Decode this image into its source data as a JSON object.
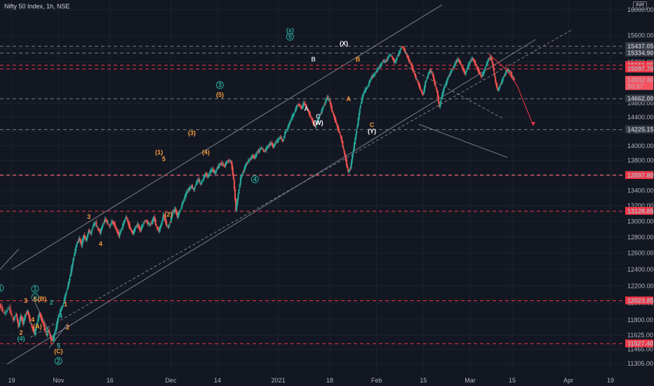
{
  "header": {
    "title": "Nifty 50 Index, 1h, NSE",
    "currency": "INR"
  },
  "chart_data": {
    "type": "candlestick",
    "instrument": "Nifty 50 Index",
    "timeframe": "1h",
    "exchange": "NSE",
    "currency": "INR",
    "ylim": [
      11235,
      16100
    ],
    "y_ticks": [
      16000,
      15600,
      15400,
      15200,
      14600,
      14400,
      14200,
      14000,
      13800,
      13600,
      13400,
      13200,
      13000,
      12800,
      12600,
      12400,
      12200,
      12000,
      11800,
      11625,
      11465,
      11305
    ],
    "y_tick_labels": [
      "16000.00",
      "15600.00",
      "15400.00",
      "15200.00",
      "14600.00",
      "14400.00",
      "14200.00",
      "14000.00",
      "13800.00",
      "13600.00",
      "13400.00",
      "13200.00",
      "13000.00",
      "12800.00",
      "12600.00",
      "12400.00",
      "12200.00",
      "12000.00",
      "11800.00",
      "11625.00",
      "11465.00",
      "11305.00"
    ],
    "x_ticks": [
      {
        "label": "19",
        "x": 0
      },
      {
        "label": "Nov",
        "x": 10
      },
      {
        "label": "16",
        "x": 21
      },
      {
        "label": "Dec",
        "x": 34
      },
      {
        "label": "14",
        "x": 44
      },
      {
        "label": "2021",
        "x": 57
      },
      {
        "label": "18",
        "x": 68
      },
      {
        "label": "Feb",
        "x": 78
      },
      {
        "label": "15",
        "x": 88
      },
      {
        "label": "Mar",
        "x": 98
      },
      {
        "label": "15",
        "x": 107
      },
      {
        "label": "Apr",
        "x": 119
      },
      {
        "label": "19",
        "x": 128
      }
    ],
    "xlim": [
      -2.5,
      131
    ],
    "price_path": [
      [
        -2.5,
        11980
      ],
      [
        -1.5,
        11870
      ],
      [
        -0.5,
        11940
      ],
      [
        0.5,
        11790
      ],
      [
        1,
        11880
      ],
      [
        1.5,
        11720
      ],
      [
        2,
        11840
      ],
      [
        2.5,
        11760
      ],
      [
        3,
        11860
      ],
      [
        3.5,
        11900
      ],
      [
        4,
        11780
      ],
      [
        4.5,
        11700
      ],
      [
        5,
        11640
      ],
      [
        5.5,
        11770
      ],
      [
        6,
        11880
      ],
      [
        6.5,
        11800
      ],
      [
        7,
        11720
      ],
      [
        7.5,
        11620
      ],
      [
        8,
        11680
      ],
      [
        8.5,
        11560
      ],
      [
        9,
        11600
      ],
      [
        9.5,
        11700
      ],
      [
        10,
        11820
      ],
      [
        10.5,
        11910
      ],
      [
        11,
        11970
      ],
      [
        11.5,
        12080
      ],
      [
        12,
        12180
      ],
      [
        12.5,
        12300
      ],
      [
        13,
        12450
      ],
      [
        13.5,
        12600
      ],
      [
        14,
        12720
      ],
      [
        14.5,
        12780
      ],
      [
        15,
        12700
      ],
      [
        15.5,
        12820
      ],
      [
        16,
        12760
      ],
      [
        16.5,
        12880
      ],
      [
        17,
        12840
      ],
      [
        17.5,
        12950
      ],
      [
        18,
        12980
      ],
      [
        18.5,
        12900
      ],
      [
        19,
        12860
      ],
      [
        19.5,
        12950
      ],
      [
        20,
        13020
      ],
      [
        20.5,
        12990
      ],
      [
        21,
        12930
      ],
      [
        21.5,
        13000
      ],
      [
        22,
        12960
      ],
      [
        22.5,
        12880
      ],
      [
        23,
        12820
      ],
      [
        23.5,
        12900
      ],
      [
        24,
        12980
      ],
      [
        24.5,
        13060
      ],
      [
        25,
        12970
      ],
      [
        25.5,
        12890
      ],
      [
        26,
        12850
      ],
      [
        26.5,
        12920
      ],
      [
        27,
        12960
      ],
      [
        27.5,
        12880
      ],
      [
        28,
        12940
      ],
      [
        28.5,
        13010
      ],
      [
        29,
        12990
      ],
      [
        29.5,
        12950
      ],
      [
        30,
        12980
      ],
      [
        30.5,
        13050
      ],
      [
        31,
        12930
      ],
      [
        31.5,
        12880
      ],
      [
        32,
        12950
      ],
      [
        32.5,
        13080
      ],
      [
        33,
        12980
      ],
      [
        33.5,
        12920
      ],
      [
        34,
        13000
      ],
      [
        34.5,
        13120
      ],
      [
        35,
        13150
      ],
      [
        35.5,
        13060
      ],
      [
        36,
        13130
      ],
      [
        36.5,
        13220
      ],
      [
        37,
        13300
      ],
      [
        37.5,
        13380
      ],
      [
        38,
        13420
      ],
      [
        38.5,
        13460
      ],
      [
        39,
        13400
      ],
      [
        39.5,
        13500
      ],
      [
        40,
        13540
      ],
      [
        40.5,
        13480
      ],
      [
        41,
        13560
      ],
      [
        41.5,
        13620
      ],
      [
        42,
        13580
      ],
      [
        42.5,
        13650
      ],
      [
        43,
        13680
      ],
      [
        43.5,
        13630
      ],
      [
        44,
        13700
      ],
      [
        44.5,
        13740
      ],
      [
        45,
        13760
      ],
      [
        45.5,
        13720
      ],
      [
        46,
        13780
      ],
      [
        46.5,
        13800
      ],
      [
        47,
        13770
      ],
      [
        47.5,
        13540
      ],
      [
        48,
        13150
      ],
      [
        48.5,
        13350
      ],
      [
        49,
        13560
      ],
      [
        49.5,
        13640
      ],
      [
        50,
        13720
      ],
      [
        50.5,
        13780
      ],
      [
        51,
        13820
      ],
      [
        51.5,
        13860
      ],
      [
        52,
        13840
      ],
      [
        52.5,
        13900
      ],
      [
        53,
        13940
      ],
      [
        53.5,
        13980
      ],
      [
        54,
        13920
      ],
      [
        54.5,
        13960
      ],
      [
        55,
        14000
      ],
      [
        55.5,
        14040
      ],
      [
        56,
        13990
      ],
      [
        56.5,
        14050
      ],
      [
        57,
        14080
      ],
      [
        57.5,
        14120
      ],
      [
        58,
        14060
      ],
      [
        58.5,
        14180
      ],
      [
        59,
        14240
      ],
      [
        59.5,
        14320
      ],
      [
        60,
        14400
      ],
      [
        60.5,
        14460
      ],
      [
        61,
        14560
      ],
      [
        61.5,
        14580
      ],
      [
        62,
        14520
      ],
      [
        62.5,
        14600
      ],
      [
        63,
        14550
      ],
      [
        63.5,
        14480
      ],
      [
        64,
        14400
      ],
      [
        64.5,
        14320
      ],
      [
        65,
        14260
      ],
      [
        65.5,
        14360
      ],
      [
        66,
        14440
      ],
      [
        66.5,
        14520
      ],
      [
        67,
        14600
      ],
      [
        67.5,
        14680
      ],
      [
        68,
        14640
      ],
      [
        68.5,
        14500
      ],
      [
        69,
        14400
      ],
      [
        69.5,
        14300
      ],
      [
        70,
        14200
      ],
      [
        70.5,
        14100
      ],
      [
        71,
        13950
      ],
      [
        71.5,
        13800
      ],
      [
        72,
        13640
      ],
      [
        72.5,
        13700
      ],
      [
        73,
        13900
      ],
      [
        73.5,
        14100
      ],
      [
        74,
        14300
      ],
      [
        74.5,
        14520
      ],
      [
        75,
        14680
      ],
      [
        75.5,
        14780
      ],
      [
        76,
        14820
      ],
      [
        76.5,
        14900
      ],
      [
        77,
        14980
      ],
      [
        77.5,
        15000
      ],
      [
        78,
        15060
      ],
      [
        78.5,
        15120
      ],
      [
        79,
        15160
      ],
      [
        79.5,
        15220
      ],
      [
        80,
        15200
      ],
      [
        80.5,
        15270
      ],
      [
        81,
        15320
      ],
      [
        81.5,
        15250
      ],
      [
        82,
        15190
      ],
      [
        82.5,
        15280
      ],
      [
        83,
        15360
      ],
      [
        83.5,
        15440
      ],
      [
        84,
        15380
      ],
      [
        84.5,
        15300
      ],
      [
        85,
        15220
      ],
      [
        85.5,
        15150
      ],
      [
        86,
        15050
      ],
      [
        86.5,
        14960
      ],
      [
        87,
        14880
      ],
      [
        87.5,
        14780
      ],
      [
        88,
        14720
      ],
      [
        88.5,
        14900
      ],
      [
        89,
        15000
      ],
      [
        89.5,
        15080
      ],
      [
        90,
        15020
      ],
      [
        90.5,
        14880
      ],
      [
        91,
        14760
      ],
      [
        91.5,
        14540
      ],
      [
        92,
        14700
      ],
      [
        92.5,
        14820
      ],
      [
        93,
        14900
      ],
      [
        93.5,
        15000
      ],
      [
        94,
        15060
      ],
      [
        94.5,
        15120
      ],
      [
        95,
        15200
      ],
      [
        95.5,
        15240
      ],
      [
        96,
        15180
      ],
      [
        96.5,
        15100
      ],
      [
        97,
        15020
      ],
      [
        97.5,
        15120
      ],
      [
        98,
        15200
      ],
      [
        98.5,
        15260
      ],
      [
        99,
        15200
      ],
      [
        99.5,
        15120
      ],
      [
        100,
        15040
      ],
      [
        100.5,
        14980
      ],
      [
        101,
        15060
      ],
      [
        101.5,
        15160
      ],
      [
        102,
        15240
      ],
      [
        102.5,
        15270
      ],
      [
        103,
        15120
      ],
      [
        103.5,
        14900
      ],
      [
        104,
        14780
      ],
      [
        104.5,
        14860
      ],
      [
        105,
        14940
      ],
      [
        105.5,
        15020
      ],
      [
        106,
        15090
      ],
      [
        106.5,
        15060
      ],
      [
        107,
        14990
      ],
      [
        107.5,
        14932
      ]
    ],
    "horizontal_levels": [
      {
        "value": 15437.05,
        "label": "15437.05",
        "style": "dashed-gray"
      },
      {
        "value": 15334.9,
        "label": "15334.90",
        "style": "dashed-gray"
      },
      {
        "value": 15151.85,
        "label": "15151.85",
        "style": "dashed-red"
      },
      {
        "value": 15097.7,
        "label": "15097.70",
        "style": "dashed-red"
      },
      {
        "value": 14662.0,
        "label": "14662.00",
        "style": "dashed-gray"
      },
      {
        "value": 14225.15,
        "label": "14225.15",
        "style": "dashed-gray"
      },
      {
        "value": 13605.8,
        "label": "13605.80",
        "style": "dashed-gray"
      },
      {
        "value": 13597.8,
        "label": "13597.80",
        "style": "dashed-red"
      },
      {
        "value": 13128.85,
        "label": "13128.85",
        "style": "dashed-red"
      },
      {
        "value": 12023.85,
        "label": "12023.85",
        "style": "dashed-red"
      },
      {
        "value": 11527.4,
        "label": "11527.40",
        "style": "dashed-red"
      }
    ],
    "current_price": {
      "value": 14932.4,
      "label": "14932.40",
      "countdown": "50:37"
    },
    "trend_lines": [
      {
        "x1": -2.5,
        "y1": 12400,
        "x2": 1.5,
        "y2": 12650,
        "style": "solid"
      },
      {
        "x1": 0,
        "y1": 12400,
        "x2": 92,
        "y2": 16080,
        "style": "solid"
      },
      {
        "x1": -1,
        "y1": 11300,
        "x2": 112,
        "y2": 15540,
        "style": "solid"
      },
      {
        "x1": 4,
        "y1": 11600,
        "x2": 120,
        "y2": 15700,
        "style": "dashed"
      },
      {
        "x1": 84,
        "y1": 15150,
        "x2": 105,
        "y2": 14380,
        "style": "dashed"
      },
      {
        "x1": 87,
        "y1": 14300,
        "x2": 106,
        "y2": 13840,
        "style": "solid"
      },
      {
        "x1": 5,
        "y1": 12000,
        "x2": 9,
        "y2": 11560,
        "style": "solid"
      },
      {
        "x1": 8,
        "y1": 11480,
        "x2": 12,
        "y2": 11760,
        "style": "solid"
      }
    ],
    "projection": [
      [
        102,
        15320
      ],
      [
        105.5,
        15100
      ],
      [
        108,
        14860
      ],
      [
        111.5,
        14280
      ]
    ],
    "wave_labels": [
      {
        "text": "1",
        "x": -2.5,
        "y": 12150,
        "color": "#26a69a",
        "circle": true
      },
      {
        "text": "1",
        "x": 5,
        "y": 12140,
        "color": "#26a69a",
        "circle": true
      },
      {
        "text": "v",
        "x": 5,
        "y": 12040,
        "color": "#26a69a",
        "circle": true
      },
      {
        "text": "3",
        "x": 3,
        "y": 12000,
        "color": "#f89c3c"
      },
      {
        "text": "5",
        "x": 5,
        "y": 12010,
        "color": "#f89c3c"
      },
      {
        "text": "(B)",
        "x": 6.5,
        "y": 12020,
        "color": "#f89c3c"
      },
      {
        "text": "4",
        "x": 4.5,
        "y": 11780,
        "color": "#f89c3c"
      },
      {
        "text": "2",
        "x": 2,
        "y": 11630,
        "color": "#f89c3c"
      },
      {
        "text": "(4)",
        "x": 2,
        "y": 11560,
        "color": "#26a69a"
      },
      {
        "text": "(A)",
        "x": 5.5,
        "y": 11700,
        "color": "#f89c3c"
      },
      {
        "text": "1",
        "x": 7.5,
        "y": 11660,
        "color": "#26a69a"
      },
      {
        "text": "2",
        "x": 8.5,
        "y": 11980,
        "color": "#26a69a"
      },
      {
        "text": "3",
        "x": 9,
        "y": 11550,
        "color": "#26a69a"
      },
      {
        "text": "4",
        "x": 10.5,
        "y": 11820,
        "color": "#26a69a"
      },
      {
        "text": "5",
        "x": 10,
        "y": 11480,
        "color": "#26a69a"
      },
      {
        "text": "(C)",
        "x": 10,
        "y": 11420,
        "color": "#f89c3c"
      },
      {
        "text": "2",
        "x": 10,
        "y": 11310,
        "color": "#26a69a",
        "circle": true
      },
      {
        "text": "1",
        "x": 11.5,
        "y": 11960,
        "color": "#f89c3c"
      },
      {
        "text": "2",
        "x": 12,
        "y": 11690,
        "color": "#f89c3c"
      },
      {
        "text": "3",
        "x": 16.5,
        "y": 13030,
        "color": "#f89c3c"
      },
      {
        "text": "4",
        "x": 19,
        "y": 12690,
        "color": "#f89c3c"
      },
      {
        "text": "(1)",
        "x": 31.5,
        "y": 13880,
        "color": "#f89c3c"
      },
      {
        "text": "5",
        "x": 32.5,
        "y": 13790,
        "color": "#f89c3c"
      },
      {
        "text": "(2)",
        "x": 33.5,
        "y": 13060,
        "color": "#f89c3c"
      },
      {
        "text": "(3)",
        "x": 38.5,
        "y": 14150,
        "color": "#f89c3c"
      },
      {
        "text": "(4)",
        "x": 41.5,
        "y": 13880,
        "color": "#f89c3c"
      },
      {
        "text": "3",
        "x": 44.5,
        "y": 14830,
        "color": "#26a69a",
        "circle": true
      },
      {
        "text": "(5)",
        "x": 44.5,
        "y": 14690,
        "color": "#f89c3c"
      },
      {
        "text": "4",
        "x": 52,
        "y": 13520,
        "color": "#26a69a",
        "circle": true
      },
      {
        "text": "(x)",
        "x": 59.5,
        "y": 15650,
        "color": "#26a69a"
      },
      {
        "text": "5",
        "x": 59.5,
        "y": 15550,
        "color": "#26a69a",
        "circle": true
      },
      {
        "text": "B",
        "x": 64.5,
        "y": 15210,
        "color": "#d1d4dc"
      },
      {
        "text": "A",
        "x": 63,
        "y": 14490,
        "color": "#d1d4dc"
      },
      {
        "text": "C",
        "x": 65.5,
        "y": 14380,
        "color": "#d1d4dc"
      },
      {
        "text": "(W)",
        "x": 65.5,
        "y": 14290,
        "color": "#ffffff"
      },
      {
        "text": "(X)",
        "x": 71,
        "y": 15450,
        "color": "#ffffff"
      },
      {
        "text": "B",
        "x": 74,
        "y": 15210,
        "color": "#f89c3c"
      },
      {
        "text": "A",
        "x": 72,
        "y": 14630,
        "color": "#f89c3c"
      },
      {
        "text": "C",
        "x": 77,
        "y": 14260,
        "color": "#f89c3c"
      },
      {
        "text": "(Y)",
        "x": 77,
        "y": 14170,
        "color": "#ffffff"
      }
    ]
  },
  "colors": {
    "background": "#131722",
    "grid": "#1e222d",
    "axis_text": "#b2b5be",
    "candle_up": "#26a69a",
    "candle_down": "#ef5350",
    "red_level": "#f23645",
    "gray_level": "#787b86",
    "trend_line": "#9598a1"
  }
}
